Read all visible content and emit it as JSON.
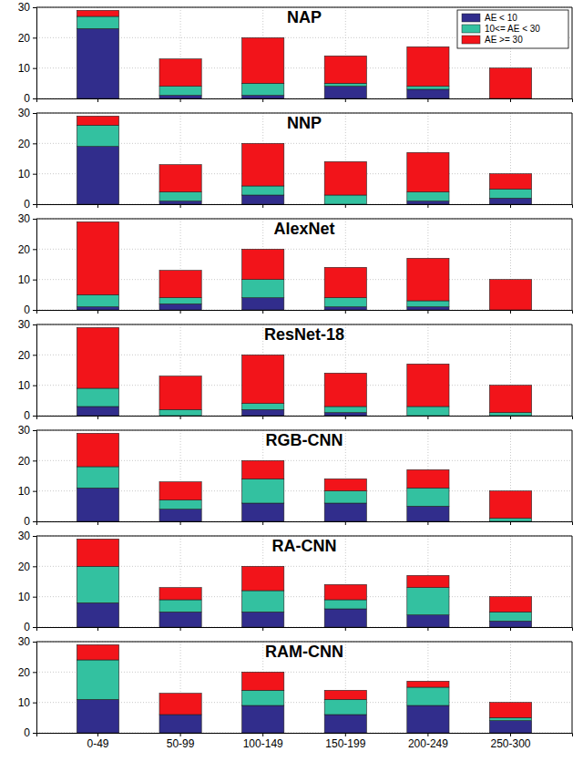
{
  "chart_data": [
    {
      "type": "bar",
      "title": "NAP",
      "stacked": true,
      "grid": true,
      "legend": "upper right",
      "categories": [
        null,
        null,
        null,
        null,
        null,
        null
      ],
      "ylim": [
        0,
        30
      ],
      "yticks": [
        0,
        10,
        20,
        30
      ],
      "series": [
        {
          "name": "AE < 10",
          "color": "#312d8c",
          "values": [
            23,
            1,
            1,
            4,
            3,
            0
          ]
        },
        {
          "name": "10<= AE < 30",
          "color": "#33c1a0",
          "values": [
            4,
            3,
            4,
            1,
            1,
            0
          ]
        },
        {
          "name": "AE >= 30",
          "color": "#f2141a",
          "values": [
            2,
            9,
            15,
            9,
            13,
            10
          ]
        }
      ]
    },
    {
      "type": "bar",
      "title": "NNP",
      "stacked": true,
      "grid": true,
      "categories": [
        null,
        null,
        null,
        null,
        null,
        null
      ],
      "ylim": [
        0,
        30
      ],
      "yticks": [
        0,
        10,
        20,
        30
      ],
      "series": [
        {
          "color": "#312d8c",
          "values": [
            19,
            1,
            3,
            0,
            1,
            2
          ]
        },
        {
          "color": "#33c1a0",
          "values": [
            7,
            3,
            3,
            3,
            3,
            3
          ]
        },
        {
          "color": "#f2141a",
          "values": [
            3,
            9,
            14,
            11,
            13,
            5
          ]
        }
      ]
    },
    {
      "type": "bar",
      "title": "AlexNet",
      "stacked": true,
      "grid": true,
      "categories": [
        null,
        null,
        null,
        null,
        null,
        null
      ],
      "ylim": [
        0,
        30
      ],
      "yticks": [
        0,
        10,
        20,
        30
      ],
      "series": [
        {
          "color": "#312d8c",
          "values": [
            1,
            2,
            4,
            1,
            1,
            0
          ]
        },
        {
          "color": "#33c1a0",
          "values": [
            4,
            2,
            6,
            3,
            2,
            0
          ]
        },
        {
          "color": "#f2141a",
          "values": [
            24,
            9,
            10,
            10,
            14,
            10
          ]
        }
      ]
    },
    {
      "type": "bar",
      "title": "ResNet-18",
      "stacked": true,
      "grid": true,
      "categories": [
        null,
        null,
        null,
        null,
        null,
        null
      ],
      "ylim": [
        0,
        30
      ],
      "yticks": [
        0,
        10,
        20,
        30
      ],
      "series": [
        {
          "color": "#312d8c",
          "values": [
            3,
            0,
            2,
            1,
            0,
            0
          ]
        },
        {
          "color": "#33c1a0",
          "values": [
            6,
            2,
            2,
            2,
            3,
            1
          ]
        },
        {
          "color": "#f2141a",
          "values": [
            20,
            11,
            16,
            11,
            14,
            9
          ]
        }
      ]
    },
    {
      "type": "bar",
      "title": "RGB-CNN",
      "stacked": true,
      "grid": true,
      "categories": [
        null,
        null,
        null,
        null,
        null,
        null
      ],
      "ylim": [
        0,
        30
      ],
      "yticks": [
        0,
        10,
        20,
        30
      ],
      "series": [
        {
          "color": "#312d8c",
          "values": [
            11,
            4,
            6,
            6,
            5,
            0
          ]
        },
        {
          "color": "#33c1a0",
          "values": [
            7,
            3,
            8,
            4,
            6,
            1
          ]
        },
        {
          "color": "#f2141a",
          "values": [
            11,
            6,
            6,
            4,
            6,
            9
          ]
        }
      ]
    },
    {
      "type": "bar",
      "title": "RA-CNN",
      "stacked": true,
      "grid": true,
      "categories": [
        null,
        null,
        null,
        null,
        null,
        null
      ],
      "ylim": [
        0,
        30
      ],
      "yticks": [
        0,
        10,
        20,
        30
      ],
      "series": [
        {
          "color": "#312d8c",
          "values": [
            8,
            5,
            5,
            6,
            4,
            2
          ]
        },
        {
          "color": "#33c1a0",
          "values": [
            12,
            4,
            7,
            3,
            9,
            3
          ]
        },
        {
          "color": "#f2141a",
          "values": [
            9,
            4,
            8,
            5,
            4,
            5
          ]
        }
      ]
    },
    {
      "type": "bar",
      "title": "RAM-CNN",
      "stacked": true,
      "grid": true,
      "categories": [
        "0-49",
        "50-99",
        "100-149",
        "150-199",
        "200-249",
        "250-300"
      ],
      "ylim": [
        0,
        30
      ],
      "yticks": [
        0,
        10,
        20,
        30
      ],
      "series": [
        {
          "color": "#312d8c",
          "values": [
            11,
            6,
            9,
            6,
            9,
            4
          ]
        },
        {
          "color": "#33c1a0",
          "values": [
            13,
            0,
            5,
            5,
            6,
            1
          ]
        },
        {
          "color": "#f2141a",
          "values": [
            5,
            7,
            6,
            3,
            2,
            5
          ]
        }
      ]
    }
  ]
}
